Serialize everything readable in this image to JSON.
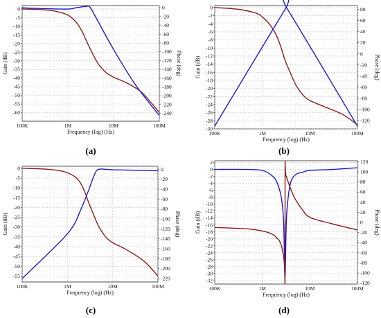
{
  "chart_data": [
    {
      "panel": "(a)",
      "type": "line",
      "xlabel": "Frequency (log) (Hz)",
      "ylabel": "Gain (dB)",
      "y2label": "Phase (deg)",
      "xscale": "log",
      "xlim": [
        100000,
        100000000
      ],
      "xticks": [
        100000,
        1000000,
        10000000,
        100000000
      ],
      "xticklabels": [
        "100K",
        "1M",
        "10M",
        "100M"
      ],
      "ylim": [
        -65,
        2
      ],
      "yticks": [
        0,
        -5,
        -10,
        -15,
        -20,
        -25,
        -30,
        -35,
        -40,
        -45,
        -50,
        -55,
        -60
      ],
      "y2lim": [
        -258,
        5
      ],
      "y2ticks": [
        0,
        -20,
        -40,
        -60,
        -80,
        -100,
        -120,
        -140,
        -160,
        -180,
        -200,
        -220,
        -240
      ],
      "grid": true,
      "series": [
        {
          "axis": "left",
          "color": "#8b1a1a",
          "x": [
            100000,
            200000,
            400000,
            600000,
            1000000,
            1500000,
            2000000,
            2500000,
            3000000,
            4000000,
            5000000,
            7000000,
            10000000,
            20000000,
            40000000,
            70000000,
            100000000
          ],
          "y": [
            0,
            -0.2,
            -0.8,
            -1.6,
            -3.5,
            -7.5,
            -12.5,
            -18,
            -22.5,
            -29,
            -33,
            -37,
            -39.5,
            -43,
            -48,
            -55,
            -60
          ]
        },
        {
          "axis": "right",
          "color": "#1a1ac8",
          "x": [
            100000,
            300000,
            1000000,
            1500000,
            2000000,
            2500000,
            3000000,
            4000000,
            10000000,
            30000000,
            100000000
          ],
          "y": [
            0,
            -2,
            -3,
            0,
            2,
            3,
            2,
            -20,
            -95,
            -175,
            -245
          ]
        }
      ]
    },
    {
      "panel": "(b)",
      "type": "line",
      "xlabel": "Frequency (log) (Hz)",
      "ylabel": "Gain (dB)",
      "y2label": "Phase (deg)",
      "xscale": "log",
      "xlim": [
        100000,
        100000000
      ],
      "xticks": [
        100000,
        1000000,
        10000000,
        100000000
      ],
      "xticklabels": [
        "100K",
        "1M",
        "10M",
        "100M"
      ],
      "ylim": [
        -30,
        0.5
      ],
      "yticks": [
        0,
        -2,
        -4,
        -6,
        -8,
        -10,
        -12,
        -14,
        -16,
        -18,
        -20,
        -22,
        -24,
        -26,
        -28,
        -30
      ],
      "y2lim": [
        -135,
        87
      ],
      "y2ticks": [
        80,
        60,
        40,
        20,
        0,
        -20,
        -40,
        -60,
        -80,
        -100,
        -120
      ],
      "grid": true,
      "series": [
        {
          "axis": "left",
          "color": "#8b1a1a",
          "x": [
            100000,
            300000,
            700000,
            1000000,
            1500000,
            2000000,
            2500000,
            3000000,
            4000000,
            5000000,
            7000000,
            10000000,
            20000000,
            50000000,
            100000000
          ],
          "y": [
            0,
            -0.4,
            -1.3,
            -2.3,
            -4.5,
            -7,
            -10,
            -13,
            -16.5,
            -19,
            -21.5,
            -23,
            -24.5,
            -26.5,
            -29
          ]
        },
        {
          "axis": "right",
          "color": "#1a1ac8",
          "x": [
            100000,
            3000000,
            3300000,
            100000000
          ],
          "y": [
            -130,
            80,
            82,
            -130
          ]
        }
      ]
    },
    {
      "panel": "(c)",
      "type": "line",
      "xlabel": "Frequency (log) (Hz)",
      "ylabel": "Gain (dB)",
      "y2label": "Phase (deg)",
      "xscale": "log",
      "xlim": [
        100000,
        100000000
      ],
      "xticks": [
        100000,
        1000000,
        10000000,
        100000000
      ],
      "xticklabels": [
        "100K",
        "1M",
        "10M",
        "100M"
      ],
      "ylim": [
        -58,
        1
      ],
      "yticks": [
        0,
        -5,
        -10,
        -15,
        -20,
        -25,
        -30,
        -35,
        -40,
        -45,
        -50,
        -55
      ],
      "y2lim": [
        -227,
        6
      ],
      "y2ticks": [
        0,
        -20,
        -40,
        -60,
        -80,
        -100,
        -120,
        -140,
        -160,
        -180,
        -200,
        -220
      ],
      "grid": true,
      "series": [
        {
          "axis": "left",
          "color": "#8b1a1a",
          "x": [
            100000,
            300000,
            700000,
            1000000,
            1500000,
            2000000,
            2500000,
            3000000,
            4000000,
            5000000,
            7000000,
            10000000,
            20000000,
            50000000,
            100000000
          ],
          "y": [
            0,
            -0.4,
            -1.3,
            -2.3,
            -4.5,
            -8,
            -13,
            -18,
            -25,
            -30,
            -35,
            -38,
            -41.5,
            -47.5,
            -55
          ]
        },
        {
          "axis": "right",
          "color": "#1a1ac8",
          "x": [
            100000,
            1000000,
            2000000,
            3000000,
            4000000,
            5000000,
            10000000,
            100000000
          ],
          "y": [
            -220,
            -130,
            -80,
            -40,
            -10,
            0,
            -1,
            -3
          ]
        }
      ]
    },
    {
      "panel": "(d)",
      "type": "line",
      "xlabel": "Frequency (log) (Hz)",
      "ylabel": "Gain (dB)",
      "y2label": "Phase (deg)",
      "xscale": "log",
      "xlim": [
        100000,
        100000000
      ],
      "xticks": [
        100000,
        1000000,
        10000000,
        100000000
      ],
      "xticklabels": [
        "100K",
        "1M",
        "10M",
        "100M"
      ],
      "ylim": [
        -33,
        2.5
      ],
      "yticks": [
        2,
        0,
        -2,
        -4,
        -6,
        -8,
        -10,
        -12,
        -14,
        -16,
        -18,
        -20,
        -22,
        -24,
        -26,
        -28,
        -30,
        -32
      ],
      "y2lim": [
        -122,
        122
      ],
      "y2ticks": [
        120,
        100,
        80,
        60,
        40,
        20,
        0,
        -20,
        -40,
        -60,
        -80,
        -100,
        -120
      ],
      "grid": true,
      "series": [
        {
          "axis": "left",
          "color": "#1a1ac8",
          "x": [
            100000,
            500000,
            1000000,
            1500000,
            2000000,
            2500000,
            2800000,
            3000000,
            3200000,
            3500000,
            4000000,
            5000000,
            7000000,
            10000000,
            30000000,
            100000000
          ],
          "y": [
            0,
            0,
            -0.3,
            -1.5,
            -3.5,
            -8,
            -15,
            -31,
            -15,
            -8,
            -3.5,
            -1.5,
            -0.8,
            -0.3,
            0,
            0.5
          ]
        },
        {
          "axis": "right",
          "color": "#8b1a1a",
          "x": [
            100000,
            500000,
            1000000,
            1500000,
            2000000,
            2500000,
            2900000,
            3000000,
            3010000,
            3100000,
            3500000,
            4000000,
            5000000,
            7000000,
            10000000,
            30000000,
            100000000
          ],
          "y": [
            -10,
            -13,
            -17,
            -22,
            -30,
            -45,
            -80,
            -112,
            108,
            95,
            80,
            65,
            45,
            25,
            10,
            -3,
            -15
          ]
        }
      ]
    }
  ]
}
